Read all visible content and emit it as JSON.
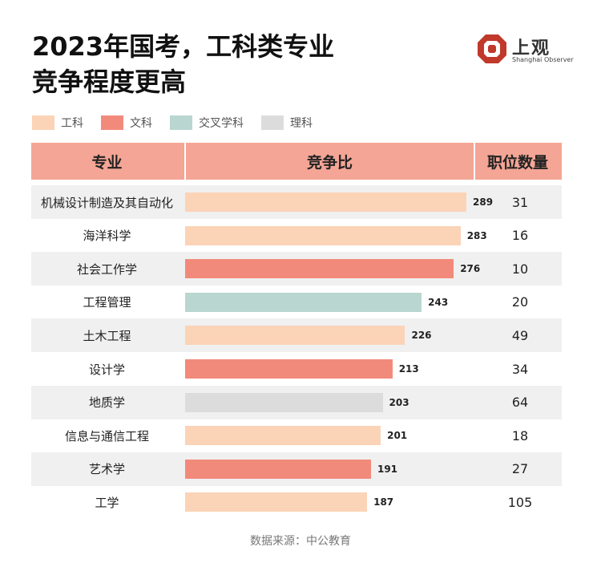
{
  "title_line1": "2023年国考，工科类专业",
  "title_line2": "竞争程度更高",
  "logo": {
    "cn": "上观",
    "en": "Shanghai Observer",
    "color": "#c0392b"
  },
  "legend": [
    {
      "label": "工科",
      "color": "#fbd3b7"
    },
    {
      "label": "文科",
      "color": "#f28a7c"
    },
    {
      "label": "交叉学科",
      "color": "#b9d6d1"
    },
    {
      "label": "理科",
      "color": "#dcdcdc"
    }
  ],
  "header": {
    "major": "专业",
    "ratio": "竞争比",
    "count": "职位数量"
  },
  "chart_data": {
    "type": "bar",
    "orientation": "horizontal",
    "title": "2023年国考，工科类专业竞争程度更高",
    "categories": [
      "机械设计制造及其自动化",
      "海洋科学",
      "社会工作学",
      "工程管理",
      "土木工程",
      "设计学",
      "地质学",
      "信息与通信工程",
      "艺术学",
      "工学"
    ],
    "values": [
      289,
      283,
      276,
      243,
      226,
      213,
      203,
      201,
      191,
      187
    ],
    "discipline": [
      "工科",
      "工科",
      "文科",
      "交叉学科",
      "工科",
      "文科",
      "理科",
      "工科",
      "文科",
      "工科"
    ],
    "positions": [
      31,
      16,
      10,
      20,
      49,
      34,
      64,
      18,
      27,
      105
    ],
    "xlim": [
      0,
      300
    ],
    "grid": false,
    "legend_position": "top-left"
  },
  "source": "数据来源：中公教育"
}
